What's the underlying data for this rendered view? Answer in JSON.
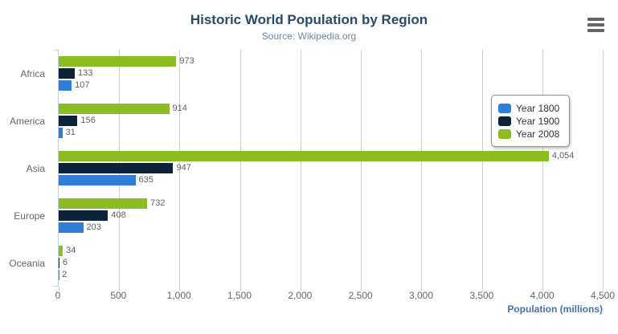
{
  "header": {
    "title": "Historic World Population by Region",
    "subtitle": "Source: Wikipedia.org"
  },
  "export_menu": {
    "icon": "hamburger-icon",
    "color": "#666666"
  },
  "chart_data": {
    "type": "bar",
    "orientation": "horizontal",
    "title": "Historic World Population by Region",
    "subtitle": "Source: Wikipedia.org",
    "categories": [
      "Africa",
      "America",
      "Asia",
      "Europe",
      "Oceania"
    ],
    "series": [
      {
        "name": "Year 1800",
        "color": "#2f7ed8",
        "values": [
          107,
          31,
          635,
          203,
          2
        ]
      },
      {
        "name": "Year 1900",
        "color": "#0d233a",
        "values": [
          133,
          156,
          947,
          408,
          6
        ]
      },
      {
        "name": "Year 2008",
        "color": "#8bbc21",
        "values": [
          973,
          914,
          4054,
          732,
          34
        ]
      }
    ],
    "bar_draw_order_top_to_bottom": [
      "Year 2008",
      "Year 1900",
      "Year 1800"
    ],
    "data_labels": {
      "Africa": {
        "Year 2008": "973",
        "Year 1900": "133",
        "Year 1800": "107"
      },
      "America": {
        "Year 2008": "914",
        "Year 1900": "156",
        "Year 1800": "31"
      },
      "Asia": {
        "Year 2008": "4,054",
        "Year 1900": "947",
        "Year 1800": "635"
      },
      "Europe": {
        "Year 2008": "732",
        "Year 1900": "408",
        "Year 1800": "203"
      },
      "Oceania": {
        "Year 2008": "34",
        "Year 1900": "6",
        "Year 1800": "2"
      }
    },
    "xlabel": "Population (millions)",
    "ylabel": "",
    "xlim": [
      0,
      4500
    ],
    "x_tick_step": 500,
    "x_tick_labels": [
      "0",
      "500",
      "1,000",
      "1,500",
      "2,000",
      "2,500",
      "3,000",
      "3,500",
      "4,000",
      "4,500"
    ],
    "grid": true,
    "legend_position": "right-inside",
    "legend_entries": [
      "Year 1800",
      "Year 1900",
      "Year 2008"
    ]
  },
  "colors": {
    "title": "#274b6d",
    "subtitle": "#6d869f",
    "axis_title": "#4572a7",
    "tick_label": "#666666",
    "data_label": "#606060",
    "gridline": "#d0d0d0",
    "axis_line": "#c0d0e0",
    "legend_border": "#909090",
    "series_year_1800": "#2f7ed8",
    "series_year_1900": "#0d233a",
    "series_year_2008": "#8bbc21"
  }
}
